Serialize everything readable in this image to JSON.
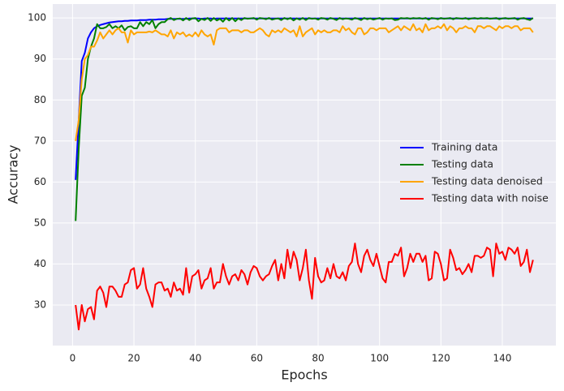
{
  "chart_data": {
    "type": "line",
    "x_label": "Epochs",
    "y_label": "Accuracy",
    "x": [
      1,
      2,
      3,
      4,
      5,
      6,
      7,
      8,
      9,
      10,
      11,
      12,
      13,
      14,
      15,
      16,
      17,
      18,
      19,
      20,
      21,
      22,
      23,
      24,
      25,
      26,
      27,
      28,
      29,
      30,
      31,
      32,
      33,
      34,
      35,
      36,
      37,
      38,
      39,
      40,
      41,
      42,
      43,
      44,
      45,
      46,
      47,
      48,
      49,
      50,
      51,
      52,
      53,
      54,
      55,
      56,
      57,
      58,
      59,
      60,
      61,
      62,
      63,
      64,
      65,
      66,
      67,
      68,
      69,
      70,
      71,
      72,
      73,
      74,
      75,
      76,
      77,
      78,
      79,
      80,
      81,
      82,
      83,
      84,
      85,
      86,
      87,
      88,
      89,
      90,
      91,
      92,
      93,
      94,
      95,
      96,
      97,
      98,
      99,
      100,
      101,
      102,
      103,
      104,
      105,
      106,
      107,
      108,
      109,
      110,
      111,
      112,
      113,
      114,
      115,
      116,
      117,
      118,
      119,
      120,
      121,
      122,
      123,
      124,
      125,
      126,
      127,
      128,
      129,
      130,
      131,
      132,
      133,
      134,
      135,
      136,
      137,
      138,
      139,
      140,
      141,
      142,
      143,
      144,
      145,
      146,
      147,
      148,
      149,
      150
    ],
    "series": [
      {
        "name": "Training data",
        "color": "#0000ff",
        "values": [
          60.5,
          75,
          89.5,
          91.5,
          95,
          96.5,
          97.5,
          98,
          98.3,
          98.5,
          98.7,
          98.9,
          99,
          99.1,
          99.2,
          99.2,
          99.3,
          99.3,
          99.4,
          99.4,
          99.4,
          99.5,
          99.5,
          99.5,
          99.6,
          99.6,
          99.6,
          99.7,
          99.7,
          99.7,
          99.8,
          99.8,
          99.8,
          99.8,
          99.8,
          99.8,
          99.8,
          99.9,
          99.9,
          99.9,
          99.9,
          99.8,
          99.9,
          99.9,
          99.9,
          99.8,
          99.9,
          99.9,
          99.9,
          99.9,
          99.9,
          99.9,
          99.9,
          99.9,
          99.9,
          99.9,
          99.9,
          99.9,
          99.9,
          99.9,
          99.9,
          99.9,
          99.9,
          99.9,
          99.9,
          99.9,
          99.9,
          99.9,
          99.9,
          99.9,
          99.9,
          99.9,
          99.9,
          99.9,
          99.9,
          99.9,
          99.9,
          99.9,
          99.9,
          99.9,
          99.9,
          99.9,
          99.9,
          99.9,
          99.9,
          99.9,
          99.9,
          99.9,
          99.9,
          99.9,
          99.9,
          99.9,
          99.9,
          99.9,
          99.9,
          99.9,
          99.9,
          99.9,
          99.9,
          99.9,
          99.9,
          99.9,
          99.9,
          99.9,
          99.9,
          99.9,
          99.9,
          99.9,
          99.9,
          99.9,
          99.9,
          99.9,
          99.9,
          99.9,
          99.9,
          99.9,
          99.9,
          99.9,
          99.9,
          99.9,
          99.9,
          99.9,
          99.9,
          99.9,
          99.9,
          99.9,
          99.9,
          99.9,
          99.9,
          99.9,
          99.9,
          99.9,
          99.9,
          99.9,
          99.9,
          99.9,
          99.9,
          99.9,
          99.9,
          99.9,
          99.9,
          99.9,
          99.9,
          99.9,
          99.9,
          99.9,
          99.9,
          99.9,
          99.9,
          99.9
        ]
      },
      {
        "name": "Testing data",
        "color": "#008000",
        "values": [
          50.5,
          68,
          81,
          83,
          90,
          93,
          95,
          98.5,
          97.5,
          97.5,
          97.8,
          98.5,
          97.5,
          98,
          97.5,
          98.2,
          97,
          97.8,
          98,
          97.5,
          97.5,
          99,
          98,
          99,
          98.5,
          99.5,
          97.5,
          98.5,
          99,
          99,
          99.7,
          100,
          99.5,
          99.8,
          99.9,
          99.4,
          100,
          99.5,
          99.9,
          100,
          99.2,
          99.8,
          99.5,
          100,
          99.3,
          100,
          99.4,
          99.8,
          99.1,
          100,
          99.4,
          100,
          99.2,
          99.9,
          99.5,
          100,
          99.8,
          99.9,
          100,
          99.6,
          100,
          99.9,
          99.7,
          100,
          99.6,
          99.8,
          99.9,
          99.5,
          100,
          99.7,
          100,
          99.4,
          99.9,
          99.6,
          100,
          99.5,
          100,
          99.8,
          99.9,
          99.6,
          100,
          99.9,
          99.6,
          100,
          99.8,
          99.5,
          100,
          99.7,
          99.9,
          99.8,
          99.6,
          100,
          99.8,
          99.5,
          100,
          99.7,
          99.9,
          99.6,
          99.8,
          100,
          99.6,
          99.9,
          99.8,
          99.9,
          99.5,
          99.6,
          100,
          99.9,
          100,
          99.8,
          100,
          99.9,
          100,
          99.8,
          100,
          99.6,
          100,
          99.9,
          99.7,
          100,
          99.8,
          99.9,
          100,
          99.7,
          100,
          99.9,
          99.8,
          100,
          99.7,
          99.9,
          100,
          99.8,
          100,
          99.9,
          100,
          99.8,
          99.9,
          100,
          99.7,
          99.9,
          100,
          99.8,
          99.9,
          100,
          99.6,
          99.9,
          100,
          99.7,
          99.5,
          100
        ]
      },
      {
        "name": "Testing data denoised",
        "color": "#ffa500",
        "values": [
          70,
          75,
          85,
          90,
          91,
          93,
          93,
          94.5,
          96.5,
          95,
          96,
          97,
          96,
          97,
          97.5,
          96.5,
          96.5,
          94,
          97,
          96,
          96.5,
          96.5,
          96.5,
          96.5,
          96.7,
          96.5,
          97,
          96.5,
          96,
          96,
          95.5,
          97,
          95,
          96.5,
          96,
          96.5,
          95.5,
          96,
          95.5,
          96.5,
          95.5,
          97,
          96,
          95.5,
          96,
          93.5,
          97,
          97.5,
          97.5,
          97.5,
          96.5,
          97,
          97,
          97,
          96.5,
          97,
          97,
          96.5,
          96.5,
          97,
          97.5,
          97,
          96,
          95.5,
          97,
          96.5,
          97,
          96.5,
          97.5,
          97,
          96.5,
          97,
          95.5,
          98,
          95.5,
          96.5,
          97,
          97.5,
          96,
          97,
          96.5,
          97,
          96.5,
          96.5,
          97,
          97,
          96.5,
          98,
          97,
          97.5,
          96.5,
          96,
          97.5,
          97.5,
          96,
          96.5,
          97.5,
          97.5,
          97,
          97.5,
          97.5,
          97.5,
          96.5,
          97,
          97.5,
          98,
          97,
          98,
          97.5,
          97,
          98.5,
          97,
          97.5,
          96.5,
          98.5,
          97,
          97.5,
          97.5,
          98,
          97.5,
          98.5,
          97,
          98,
          97.5,
          96.5,
          97.5,
          97.5,
          98,
          97.5,
          97.5,
          96.5,
          98,
          98,
          97.5,
          98,
          98,
          97.5,
          97,
          98,
          97.5,
          98,
          98,
          97.5,
          98,
          98,
          97,
          97.5,
          97.5,
          97.5,
          96.5
        ]
      },
      {
        "name": "Testing data with noise",
        "color": "#ff0000",
        "values": [
          30,
          24,
          30,
          26,
          29,
          29.5,
          26.5,
          33.5,
          34.5,
          33,
          29.5,
          34.5,
          34.5,
          33.5,
          32,
          32,
          35,
          35.5,
          38.5,
          39,
          34,
          35,
          39,
          34,
          32,
          29.5,
          35,
          35.5,
          35.5,
          33.5,
          34,
          32,
          35.5,
          33.5,
          34,
          32.5,
          39,
          33,
          37,
          37.5,
          38.5,
          34,
          36,
          36.5,
          39,
          34,
          35.5,
          35.5,
          40,
          37,
          35,
          37,
          37.5,
          36,
          38.5,
          37.5,
          35,
          38,
          39.5,
          39,
          37,
          36,
          37,
          37.5,
          39.5,
          41,
          36,
          40,
          36.5,
          43.5,
          39,
          43,
          41,
          36,
          39,
          43.5,
          36,
          31.5,
          41.5,
          37,
          35.5,
          36,
          39,
          36.5,
          40,
          37,
          36.5,
          38,
          36,
          39.5,
          40.5,
          45,
          40,
          38,
          42,
          43.5,
          41,
          39.5,
          42.5,
          39.5,
          36.5,
          35.5,
          40.5,
          40.5,
          42.5,
          42,
          44,
          37,
          39,
          42.5,
          40.5,
          42.5,
          42.5,
          40.5,
          42,
          36,
          36.5,
          43,
          42.5,
          40,
          36,
          36.5,
          43.5,
          41.5,
          38.5,
          39,
          37.5,
          38.5,
          40,
          38,
          42,
          42,
          41.5,
          42,
          44,
          43.5,
          37,
          45,
          42.5,
          43,
          41,
          44,
          43.5,
          42.5,
          44,
          39.5,
          40.5,
          43.5,
          38,
          41
        ]
      }
    ],
    "xlim": [
      -6.45,
      157.45
    ],
    "xticks": [
      0,
      20,
      40,
      60,
      80,
      100,
      120,
      140
    ],
    "ylim": [
      20.1,
      103.4
    ],
    "yticks": [
      30,
      40,
      50,
      60,
      70,
      80,
      90,
      100
    ],
    "grid": true,
    "legend": "center right"
  }
}
